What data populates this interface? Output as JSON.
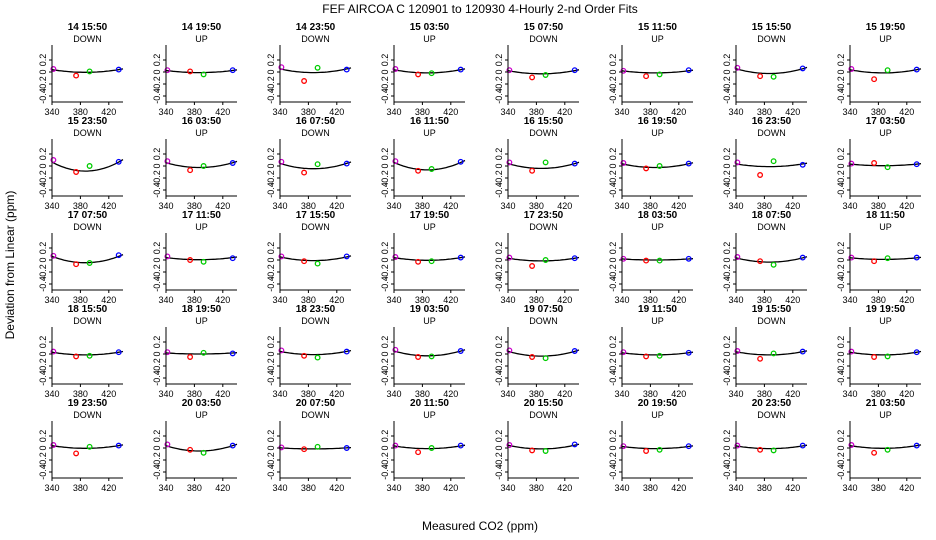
{
  "figure": {
    "title": "FEF   AIRCOA C   120901 to 120930   4-Hourly 2-nd Order Fits",
    "xlabel": "Measured CO2 (ppm)",
    "ylabel": "Deviation from Linear (ppm)",
    "colors": {
      "fit_line": "#000000",
      "point_low": "#cc00cc",
      "point_mid1": "#ff0000",
      "point_mid2": "#00cc00",
      "point_high": "#0000ff"
    }
  },
  "chart_data": {
    "type": "scatter",
    "layout": {
      "rows": 5,
      "cols": 8
    },
    "xlim": [
      340,
      440
    ],
    "ylim": [
      -0.5,
      0.45
    ],
    "xticks": [
      340,
      380,
      420
    ],
    "yticks": [
      -0.4,
      -0.2,
      0,
      0.2
    ],
    "point_x": [
      342,
      374,
      393,
      434
    ],
    "fit_vertex_x": 387,
    "panels": [
      {
        "label": "14 15:50",
        "dir": "DOWN",
        "points": [
          0.05,
          -0.06,
          0.01,
          0.04
        ],
        "curv": 0.05
      },
      {
        "label": "14 19:50",
        "dir": "UP",
        "points": [
          0.03,
          0.01,
          -0.04,
          0.03
        ],
        "curv": 0.04
      },
      {
        "label": "14 23:50",
        "dir": "DOWN",
        "points": [
          0.08,
          -0.15,
          0.07,
          0.04
        ],
        "curv": 0.07
      },
      {
        "label": "15 03:50",
        "dir": "UP",
        "points": [
          0.05,
          -0.04,
          -0.02,
          0.04
        ],
        "curv": 0.06
      },
      {
        "label": "15 07:50",
        "dir": "DOWN",
        "points": [
          0.03,
          -0.09,
          -0.05,
          0.03
        ],
        "curv": 0.06
      },
      {
        "label": "15 11:50",
        "dir": "UP",
        "points": [
          0.02,
          -0.07,
          -0.04,
          0.03
        ],
        "curv": 0.04
      },
      {
        "label": "15 15:50",
        "dir": "DOWN",
        "points": [
          0.07,
          -0.07,
          -0.08,
          0.06
        ],
        "curv": 0.09
      },
      {
        "label": "15 19:50",
        "dir": "UP",
        "points": [
          0.05,
          -0.12,
          0.03,
          0.04
        ],
        "curv": 0.06
      },
      {
        "label": "15 23:50",
        "dir": "DOWN",
        "points": [
          0.1,
          -0.1,
          0.0,
          0.07
        ],
        "curv": 0.17
      },
      {
        "label": "16 03:50",
        "dir": "UP",
        "points": [
          0.08,
          -0.07,
          0.0,
          0.05
        ],
        "curv": 0.09
      },
      {
        "label": "16 07:50",
        "dir": "DOWN",
        "points": [
          0.07,
          -0.11,
          0.03,
          0.04
        ],
        "curv": 0.1
      },
      {
        "label": "16 11:50",
        "dir": "UP",
        "points": [
          0.08,
          -0.08,
          -0.05,
          0.07
        ],
        "curv": 0.14
      },
      {
        "label": "16 15:50",
        "dir": "DOWN",
        "points": [
          0.06,
          -0.08,
          0.06,
          0.04
        ],
        "curv": 0.09
      },
      {
        "label": "16 19:50",
        "dir": "UP",
        "points": [
          0.05,
          -0.04,
          0.0,
          0.04
        ],
        "curv": 0.07
      },
      {
        "label": "16 23:50",
        "dir": "DOWN",
        "points": [
          0.06,
          -0.15,
          0.08,
          0.02
        ],
        "curv": 0.05
      },
      {
        "label": "17 03:50",
        "dir": "UP",
        "points": [
          0.04,
          0.05,
          -0.02,
          0.03
        ],
        "curv": 0.03
      },
      {
        "label": "17 07:50",
        "dir": "DOWN",
        "points": [
          0.07,
          -0.07,
          -0.05,
          0.08
        ],
        "curv": 0.12
      },
      {
        "label": "17 11:50",
        "dir": "UP",
        "points": [
          0.06,
          0.0,
          -0.03,
          0.03
        ],
        "curv": 0.04
      },
      {
        "label": "17 15:50",
        "dir": "DOWN",
        "points": [
          0.06,
          -0.02,
          -0.06,
          0.06
        ],
        "curv": 0.07
      },
      {
        "label": "17 19:50",
        "dir": "UP",
        "points": [
          0.05,
          -0.03,
          -0.02,
          0.04
        ],
        "curv": 0.05
      },
      {
        "label": "17 23:50",
        "dir": "DOWN",
        "points": [
          0.04,
          -0.1,
          0.0,
          0.03
        ],
        "curv": 0.05
      },
      {
        "label": "18 03:50",
        "dir": "UP",
        "points": [
          0.02,
          -0.01,
          -0.01,
          0.02
        ],
        "curv": 0.02
      },
      {
        "label": "18 07:50",
        "dir": "DOWN",
        "points": [
          0.05,
          -0.02,
          -0.08,
          0.04
        ],
        "curv": 0.08
      },
      {
        "label": "18 11:50",
        "dir": "UP",
        "points": [
          0.04,
          -0.02,
          0.03,
          0.04
        ],
        "curv": 0.03
      },
      {
        "label": "18 15:50",
        "dir": "DOWN",
        "points": [
          0.04,
          -0.04,
          -0.03,
          0.03
        ],
        "curv": 0.05
      },
      {
        "label": "18 19:50",
        "dir": "UP",
        "points": [
          0.03,
          -0.05,
          0.02,
          0.01
        ],
        "curv": 0.02
      },
      {
        "label": "18 23:50",
        "dir": "DOWN",
        "points": [
          0.06,
          -0.03,
          -0.06,
          0.04
        ],
        "curv": 0.06
      },
      {
        "label": "19 03:50",
        "dir": "UP",
        "points": [
          0.07,
          -0.05,
          -0.04,
          0.05
        ],
        "curv": 0.09
      },
      {
        "label": "19 07:50",
        "dir": "DOWN",
        "points": [
          0.06,
          -0.05,
          -0.07,
          0.05
        ],
        "curv": 0.09
      },
      {
        "label": "19 11:50",
        "dir": "UP",
        "points": [
          0.03,
          -0.04,
          -0.03,
          0.02
        ],
        "curv": 0.04
      },
      {
        "label": "19 15:50",
        "dir": "DOWN",
        "points": [
          0.05,
          -0.08,
          0.01,
          0.04
        ],
        "curv": 0.06
      },
      {
        "label": "19 19:50",
        "dir": "UP",
        "points": [
          0.04,
          -0.05,
          -0.04,
          0.03
        ],
        "curv": 0.05
      },
      {
        "label": "19 23:50",
        "dir": "DOWN",
        "points": [
          0.05,
          -0.09,
          0.02,
          0.04
        ],
        "curv": 0.05
      },
      {
        "label": "20 03:50",
        "dir": "UP",
        "points": [
          0.06,
          -0.03,
          -0.08,
          0.04
        ],
        "curv": 0.1
      },
      {
        "label": "20 07:50",
        "dir": "DOWN",
        "points": [
          0.01,
          -0.02,
          0.02,
          0.0
        ],
        "curv": 0.02
      },
      {
        "label": "20 11:50",
        "dir": "UP",
        "points": [
          0.04,
          -0.07,
          0.0,
          0.04
        ],
        "curv": 0.05
      },
      {
        "label": "20 15:50",
        "dir": "DOWN",
        "points": [
          0.05,
          -0.04,
          -0.05,
          0.06
        ],
        "curv": 0.07
      },
      {
        "label": "20 19:50",
        "dir": "UP",
        "points": [
          0.03,
          -0.05,
          -0.03,
          0.03
        ],
        "curv": 0.04
      },
      {
        "label": "20 23:50",
        "dir": "DOWN",
        "points": [
          0.04,
          -0.03,
          -0.04,
          0.04
        ],
        "curv": 0.05
      },
      {
        "label": "21 03:50",
        "dir": "UP",
        "points": [
          0.05,
          -0.08,
          -0.03,
          0.04
        ],
        "curv": 0.05
      }
    ]
  }
}
